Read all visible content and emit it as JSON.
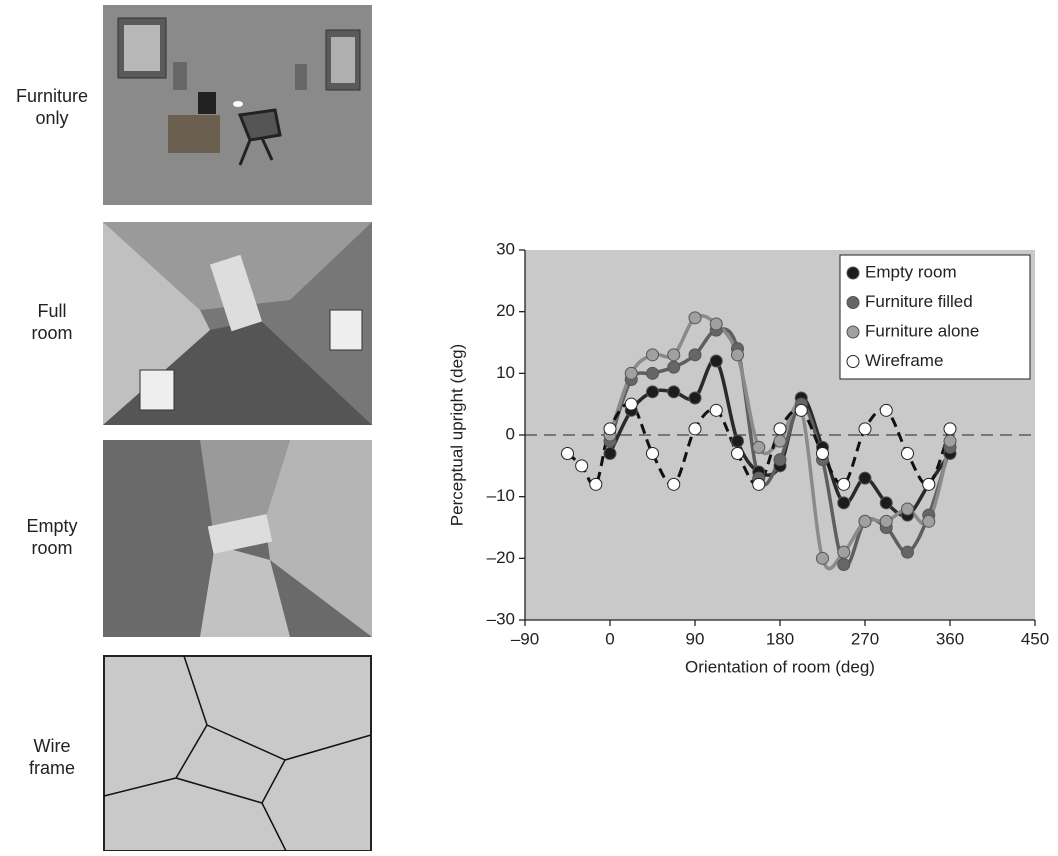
{
  "panels": [
    {
      "label": [
        "Furniture",
        "only"
      ]
    },
    {
      "label": [
        "Full",
        "room"
      ]
    },
    {
      "label": [
        "Empty",
        "room"
      ]
    },
    {
      "label": [
        "Wire",
        "frame"
      ]
    }
  ],
  "chart_data": {
    "type": "line",
    "x_label": "Orientation of room (deg)",
    "y_label": "Perceptual upright (deg)",
    "xlim": [
      -90,
      450
    ],
    "xticks": [
      {
        "value": -90,
        "label": "–90"
      },
      0,
      90,
      180,
      270,
      360,
      450
    ],
    "ylim": [
      -30,
      30
    ],
    "yticks": [
      {
        "value": -30,
        "label": "–30"
      },
      {
        "value": -20,
        "label": "–20"
      },
      {
        "value": -10,
        "label": "–10"
      },
      0,
      10,
      20,
      30
    ],
    "reference_line": 0,
    "background": "#c9c9c9",
    "legend": "top-right",
    "series": [
      {
        "name": "Empty room",
        "color": "#1c1c1c",
        "line_color": "#2a2a2a",
        "dashed": false,
        "x": [
          0,
          22.5,
          45,
          67.5,
          90,
          112.5,
          135,
          157.5,
          180,
          202.5,
          225,
          247.5,
          270,
          292.5,
          315,
          337.5,
          360
        ],
        "values": [
          -3,
          4,
          7,
          7,
          6,
          12,
          -1,
          -6,
          -5,
          6,
          -2,
          -11,
          -7,
          -11,
          -13,
          -8,
          -3
        ]
      },
      {
        "name": "Furniture filled",
        "color": "#666666",
        "line_color": "#5e5e5e",
        "dashed": false,
        "x": [
          0,
          22.5,
          45,
          67.5,
          90,
          112.5,
          135,
          157.5,
          180,
          202.5,
          225,
          247.5,
          270,
          292.5,
          315,
          337.5,
          360
        ],
        "values": [
          -1,
          9,
          10,
          11,
          13,
          17,
          14,
          -7,
          -4,
          5,
          -4,
          -21,
          -14,
          -15,
          -19,
          -13,
          -2
        ]
      },
      {
        "name": "Furniture alone",
        "color": "#a0a0a0",
        "line_color": "#8a8a8a",
        "dashed": false,
        "x": [
          0,
          22.5,
          45,
          67.5,
          90,
          112.5,
          135,
          157.5,
          180,
          202.5,
          225,
          247.5,
          270,
          292.5,
          315,
          337.5,
          360
        ],
        "values": [
          0,
          10,
          13,
          13,
          19,
          18,
          13,
          -2,
          -1,
          4,
          -20,
          -19,
          -14,
          -14,
          -12,
          -14,
          -1
        ]
      },
      {
        "name": "Wireframe",
        "color": "#ffffff",
        "line_color": "#111111",
        "dashed": true,
        "x": [
          -45,
          -30,
          -15,
          0,
          22.5,
          45,
          67.5,
          90,
          112.5,
          135,
          157.5,
          180,
          202.5,
          225,
          247.5,
          270,
          292.5,
          315,
          337.5,
          360
        ],
        "values": [
          -3,
          -5,
          -8,
          1,
          5,
          -3,
          -8,
          1,
          4,
          -3,
          -8,
          1,
          4,
          -3,
          -8,
          1,
          4,
          -3,
          -8,
          1
        ]
      }
    ]
  }
}
